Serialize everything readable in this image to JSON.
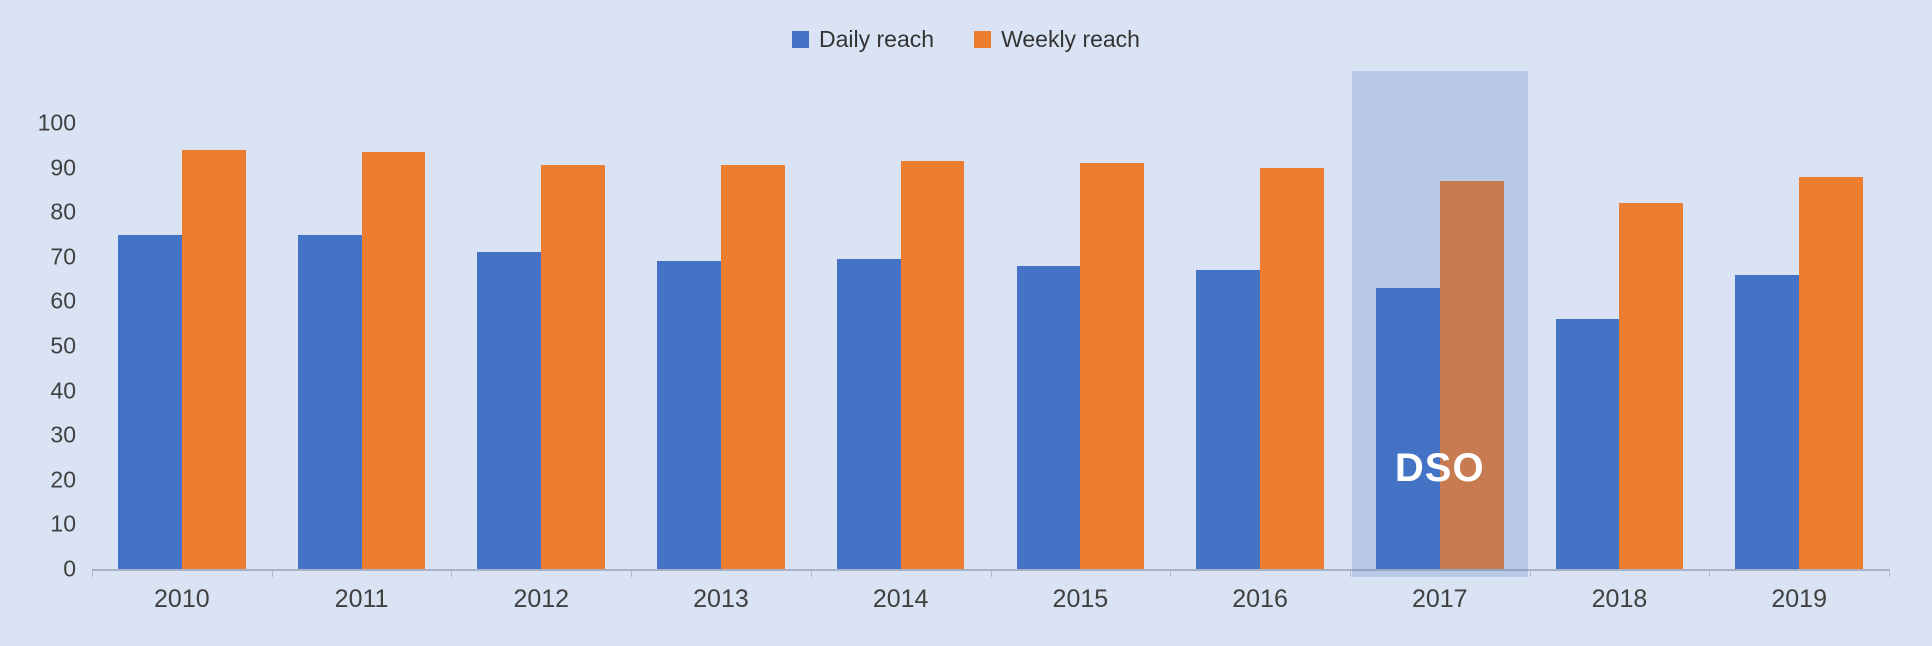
{
  "colors": {
    "background": "#dae3f3",
    "daily": "#4472c4",
    "weekly": "#ed7d31",
    "axis_line": "#a9b2c4",
    "axis_text": "#404040",
    "highlight_overlay": "rgba(68,114,196,0.22)",
    "highlight_label_color": "#ffffff"
  },
  "legend": {
    "daily_label": "Daily reach",
    "weekly_label": "Weekly reach"
  },
  "chart_data": {
    "type": "bar",
    "title": "",
    "xlabel": "",
    "ylabel": "",
    "categories": [
      "2010",
      "2011",
      "2012",
      "2013",
      "2014",
      "2015",
      "2016",
      "2017",
      "2018",
      "2019"
    ],
    "series": [
      {
        "name": "Daily reach",
        "color": "#4472c4",
        "values": [
          75,
          75,
          71,
          69,
          69.5,
          68,
          67,
          63,
          56,
          66
        ]
      },
      {
        "name": "Weekly reach",
        "color": "#ed7d31",
        "values": [
          94,
          93.5,
          90.5,
          90.5,
          91.5,
          91,
          90,
          87,
          82,
          88
        ]
      }
    ],
    "ylim": [
      0,
      100
    ],
    "yticks": [
      0,
      10,
      20,
      30,
      40,
      50,
      60,
      70,
      80,
      90,
      100
    ],
    "grid": false,
    "legend_position": "top-center",
    "annotations": [
      {
        "type": "highlight-band",
        "category": "2017",
        "label": "DSO"
      }
    ]
  }
}
